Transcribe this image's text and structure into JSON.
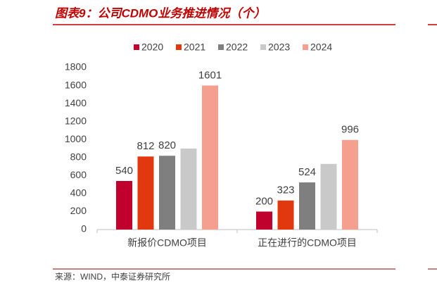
{
  "chart_data": {
    "type": "bar",
    "title": "图表9：公司CDMO业务推进情况（个）",
    "source": "来源：WIND，中泰证券研究所",
    "categories": [
      "新报价CDMO项目",
      "正在进行的CDMO项目"
    ],
    "series": [
      {
        "name": "2020",
        "color": "#c0002d",
        "values": [
          540,
          200
        ],
        "data_labels": true
      },
      {
        "name": "2021",
        "color": "#e2380f",
        "values": [
          812,
          323
        ],
        "data_labels": true
      },
      {
        "name": "2022",
        "color": "#7f7f7f",
        "values": [
          820,
          524
        ],
        "data_labels": true
      },
      {
        "name": "2023",
        "color": "#c9c9c9",
        "values": [
          900,
          730
        ],
        "data_labels": false
      },
      {
        "name": "2024",
        "color": "#f5a08e",
        "values": [
          1601,
          996
        ],
        "data_labels": true
      }
    ],
    "ylim": [
      0,
      1800
    ],
    "yticks": [
      0,
      200,
      400,
      600,
      800,
      1000,
      1200,
      1400,
      1600,
      1800
    ],
    "grid": false,
    "legend": "top"
  }
}
